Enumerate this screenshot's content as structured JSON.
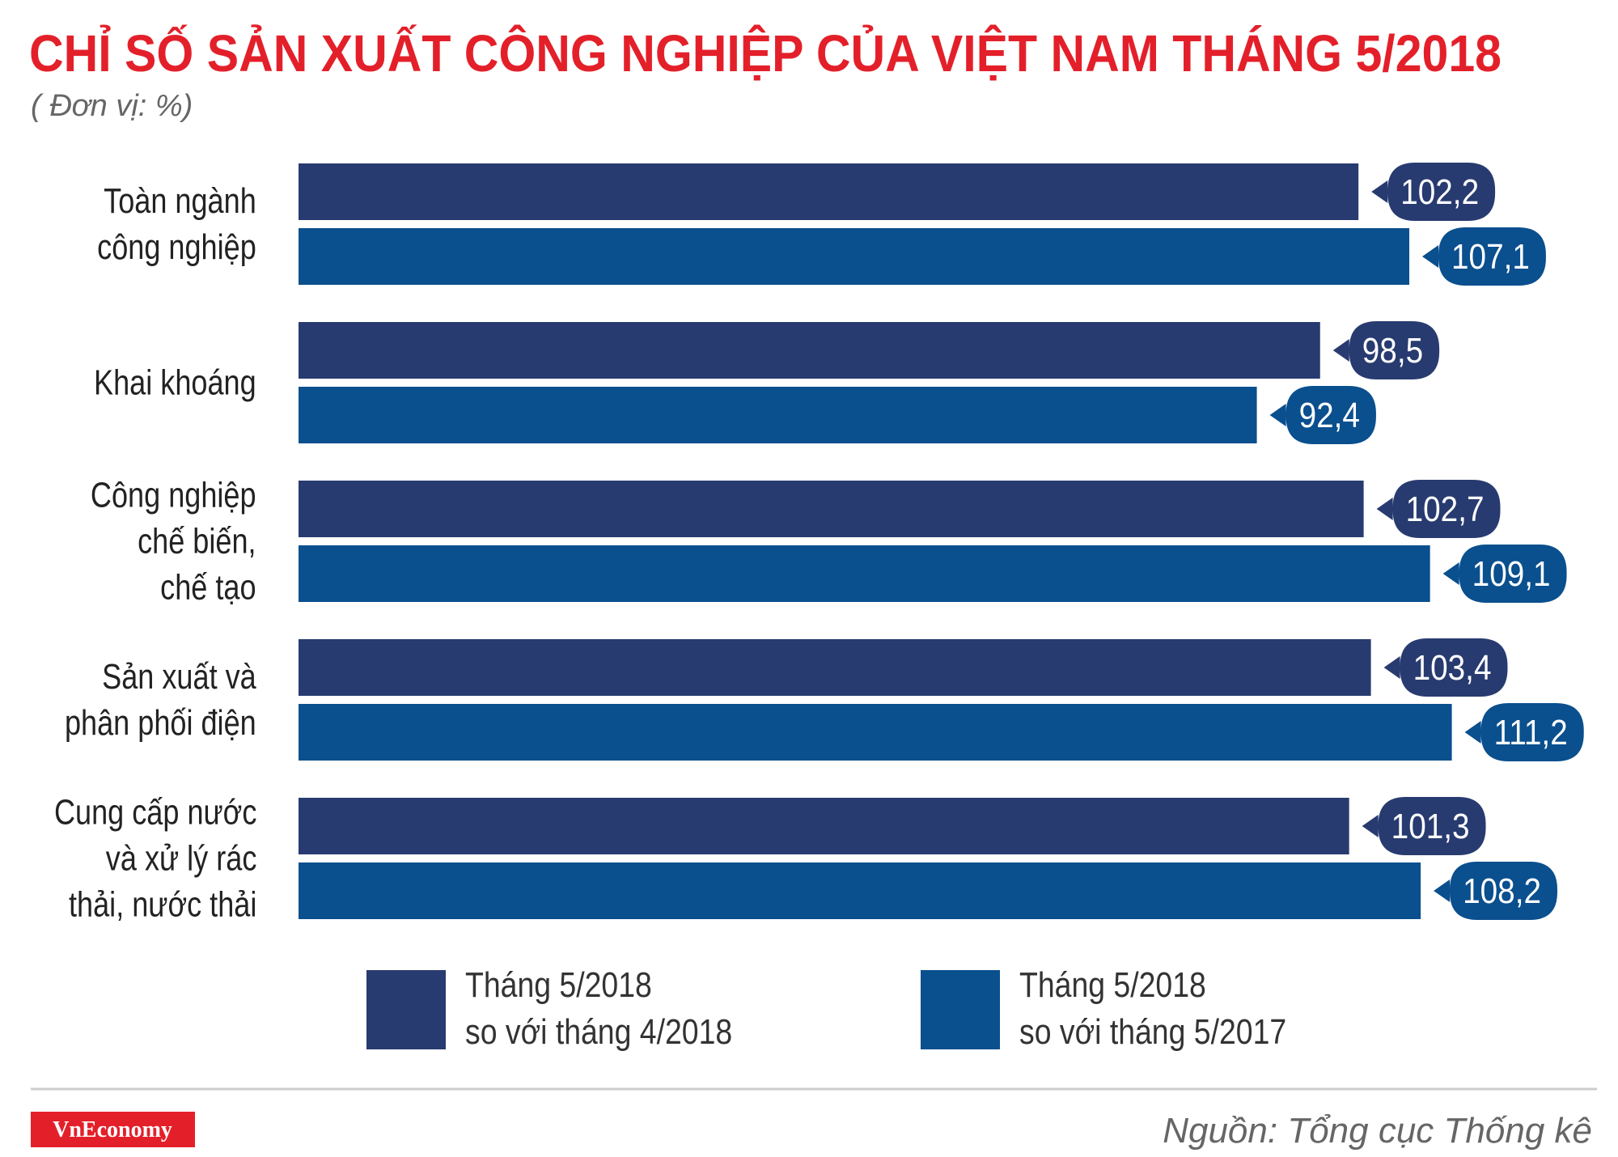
{
  "chart_data": {
    "type": "bar",
    "orientation": "horizontal",
    "title": "CHỈ SỐ SẢN XUẤT CÔNG NGHIỆP CỦA VIỆT NAM THÁNG 5/2018",
    "subtitle": "( Đơn vị: %)",
    "categories": [
      "Toàn ngành\ncông nghiệp",
      "Khai khoáng",
      "Công nghiệp\nchế biến,\nchế tạo",
      "Sản xuất và\nphân phối điện",
      "Cung cấp nước\nvà xử lý rác\nthải, nước thải"
    ],
    "series": [
      {
        "name": "Tháng 5/2018\nso với tháng 4/2018",
        "color": "#283b70",
        "values": [
          102.2,
          98.5,
          102.7,
          103.4,
          101.3
        ],
        "value_labels": [
          "102,2",
          "98,5",
          "102,7",
          "103,4",
          "101,3"
        ]
      },
      {
        "name": "Tháng 5/2018\nso với tháng 5/2017",
        "color": "#0a4f8e",
        "values": [
          107.1,
          92.4,
          109.1,
          111.2,
          108.2
        ],
        "value_labels": [
          "107,1",
          "92,4",
          "109,1",
          "111,2",
          "108,2"
        ]
      }
    ]
  },
  "footer": {
    "logo": "VnEconomy",
    "source": "Nguồn: Tổng cục Thống kê"
  }
}
